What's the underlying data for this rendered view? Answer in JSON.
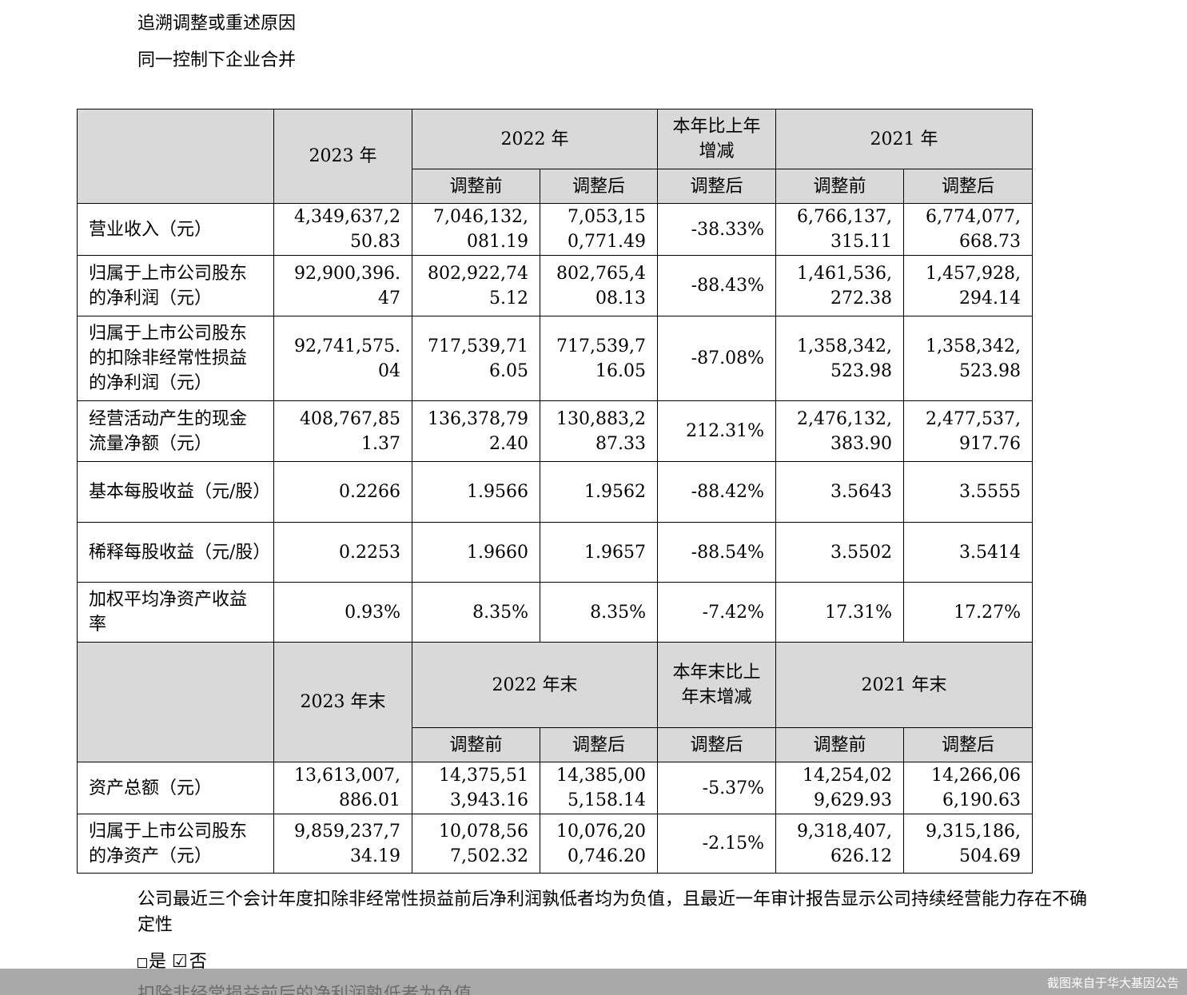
{
  "intro": {
    "line1": "追溯调整或重述原因",
    "line2": "同一控制下企业合并"
  },
  "table1": {
    "header": {
      "col_2023": "2023 年",
      "col_2022": "2022 年",
      "col_change": "本年比上年增减",
      "col_2021": "2021 年",
      "sub_before": "调整前",
      "sub_after": "调整后"
    },
    "rows": [
      {
        "label": "营业收入（元）",
        "v2023": "4,349,637,250.83",
        "v2022_before": "7,046,132,081.19",
        "v2022_after": "7,053,150,771.49",
        "change": "-38.33%",
        "v2021_before": "6,766,137,315.11",
        "v2021_after": "6,774,077,668.73"
      },
      {
        "label": "归属于上市公司股东的净利润（元）",
        "v2023": "92,900,396.47",
        "v2022_before": "802,922,745.12",
        "v2022_after": "802,765,408.13",
        "change": "-88.43%",
        "v2021_before": "1,461,536,272.38",
        "v2021_after": "1,457,928,294.14"
      },
      {
        "label": "归属于上市公司股东的扣除非经常性损益的净利润（元）",
        "v2023": "92,741,575.04",
        "v2022_before": "717,539,716.05",
        "v2022_after": "717,539,716.05",
        "change": "-87.08%",
        "v2021_before": "1,358,342,523.98",
        "v2021_after": "1,358,342,523.98"
      },
      {
        "label": "经营活动产生的现金流量净额（元）",
        "v2023": "408,767,851.37",
        "v2022_before": "136,378,792.40",
        "v2022_after": "130,883,287.33",
        "change": "212.31%",
        "v2021_before": "2,476,132,383.90",
        "v2021_after": "2,477,537,917.76"
      },
      {
        "label": "基本每股收益（元/股）",
        "v2023": "0.2266",
        "v2022_before": "1.9566",
        "v2022_after": "1.9562",
        "change": "-88.42%",
        "v2021_before": "3.5643",
        "v2021_after": "3.5555"
      },
      {
        "label": "稀释每股收益（元/股）",
        "v2023": "0.2253",
        "v2022_before": "1.9660",
        "v2022_after": "1.9657",
        "change": "-88.54%",
        "v2021_before": "3.5502",
        "v2021_after": "3.5414"
      },
      {
        "label": "加权平均净资产收益率",
        "v2023": "0.93%",
        "v2022_before": "8.35%",
        "v2022_after": "8.35%",
        "change": "-7.42%",
        "v2021_before": "17.31%",
        "v2021_after": "17.27%"
      }
    ]
  },
  "table2": {
    "header": {
      "col_2023": "2023 年末",
      "col_2022": "2022 年末",
      "col_change": "本年末比上年末增减",
      "col_2021": "2021 年末",
      "sub_before": "调整前",
      "sub_after": "调整后"
    },
    "rows": [
      {
        "label": "资产总额（元）",
        "v2023": "13,613,007,886.01",
        "v2022_before": "14,375,513,943.16",
        "v2022_after": "14,385,005,158.14",
        "change": "-5.37%",
        "v2021_before": "14,254,029,629.93",
        "v2021_after": "14,266,066,190.63"
      },
      {
        "label": "归属于上市公司股东的净资产（元）",
        "v2023": "9,859,237,734.19",
        "v2022_before": "10,078,567,502.32",
        "v2022_after": "10,076,200,746.20",
        "change": "-2.15%",
        "v2021_before": "9,318,407,626.12",
        "v2021_after": "9,315,186,504.69"
      }
    ]
  },
  "notes": {
    "text": "公司最近三个会计年度扣除非经常性损益前后净利润孰低者均为负值，且最近一年审计报告显示公司持续经营能力存在不确定性",
    "yes_label": "是",
    "checked_symbol": "☑",
    "no_label": "否",
    "underlay_text": "扣除非经常损益前后的净利润孰低者为负值"
  },
  "watermark": {
    "text": "截图来自于华大基因公告"
  }
}
